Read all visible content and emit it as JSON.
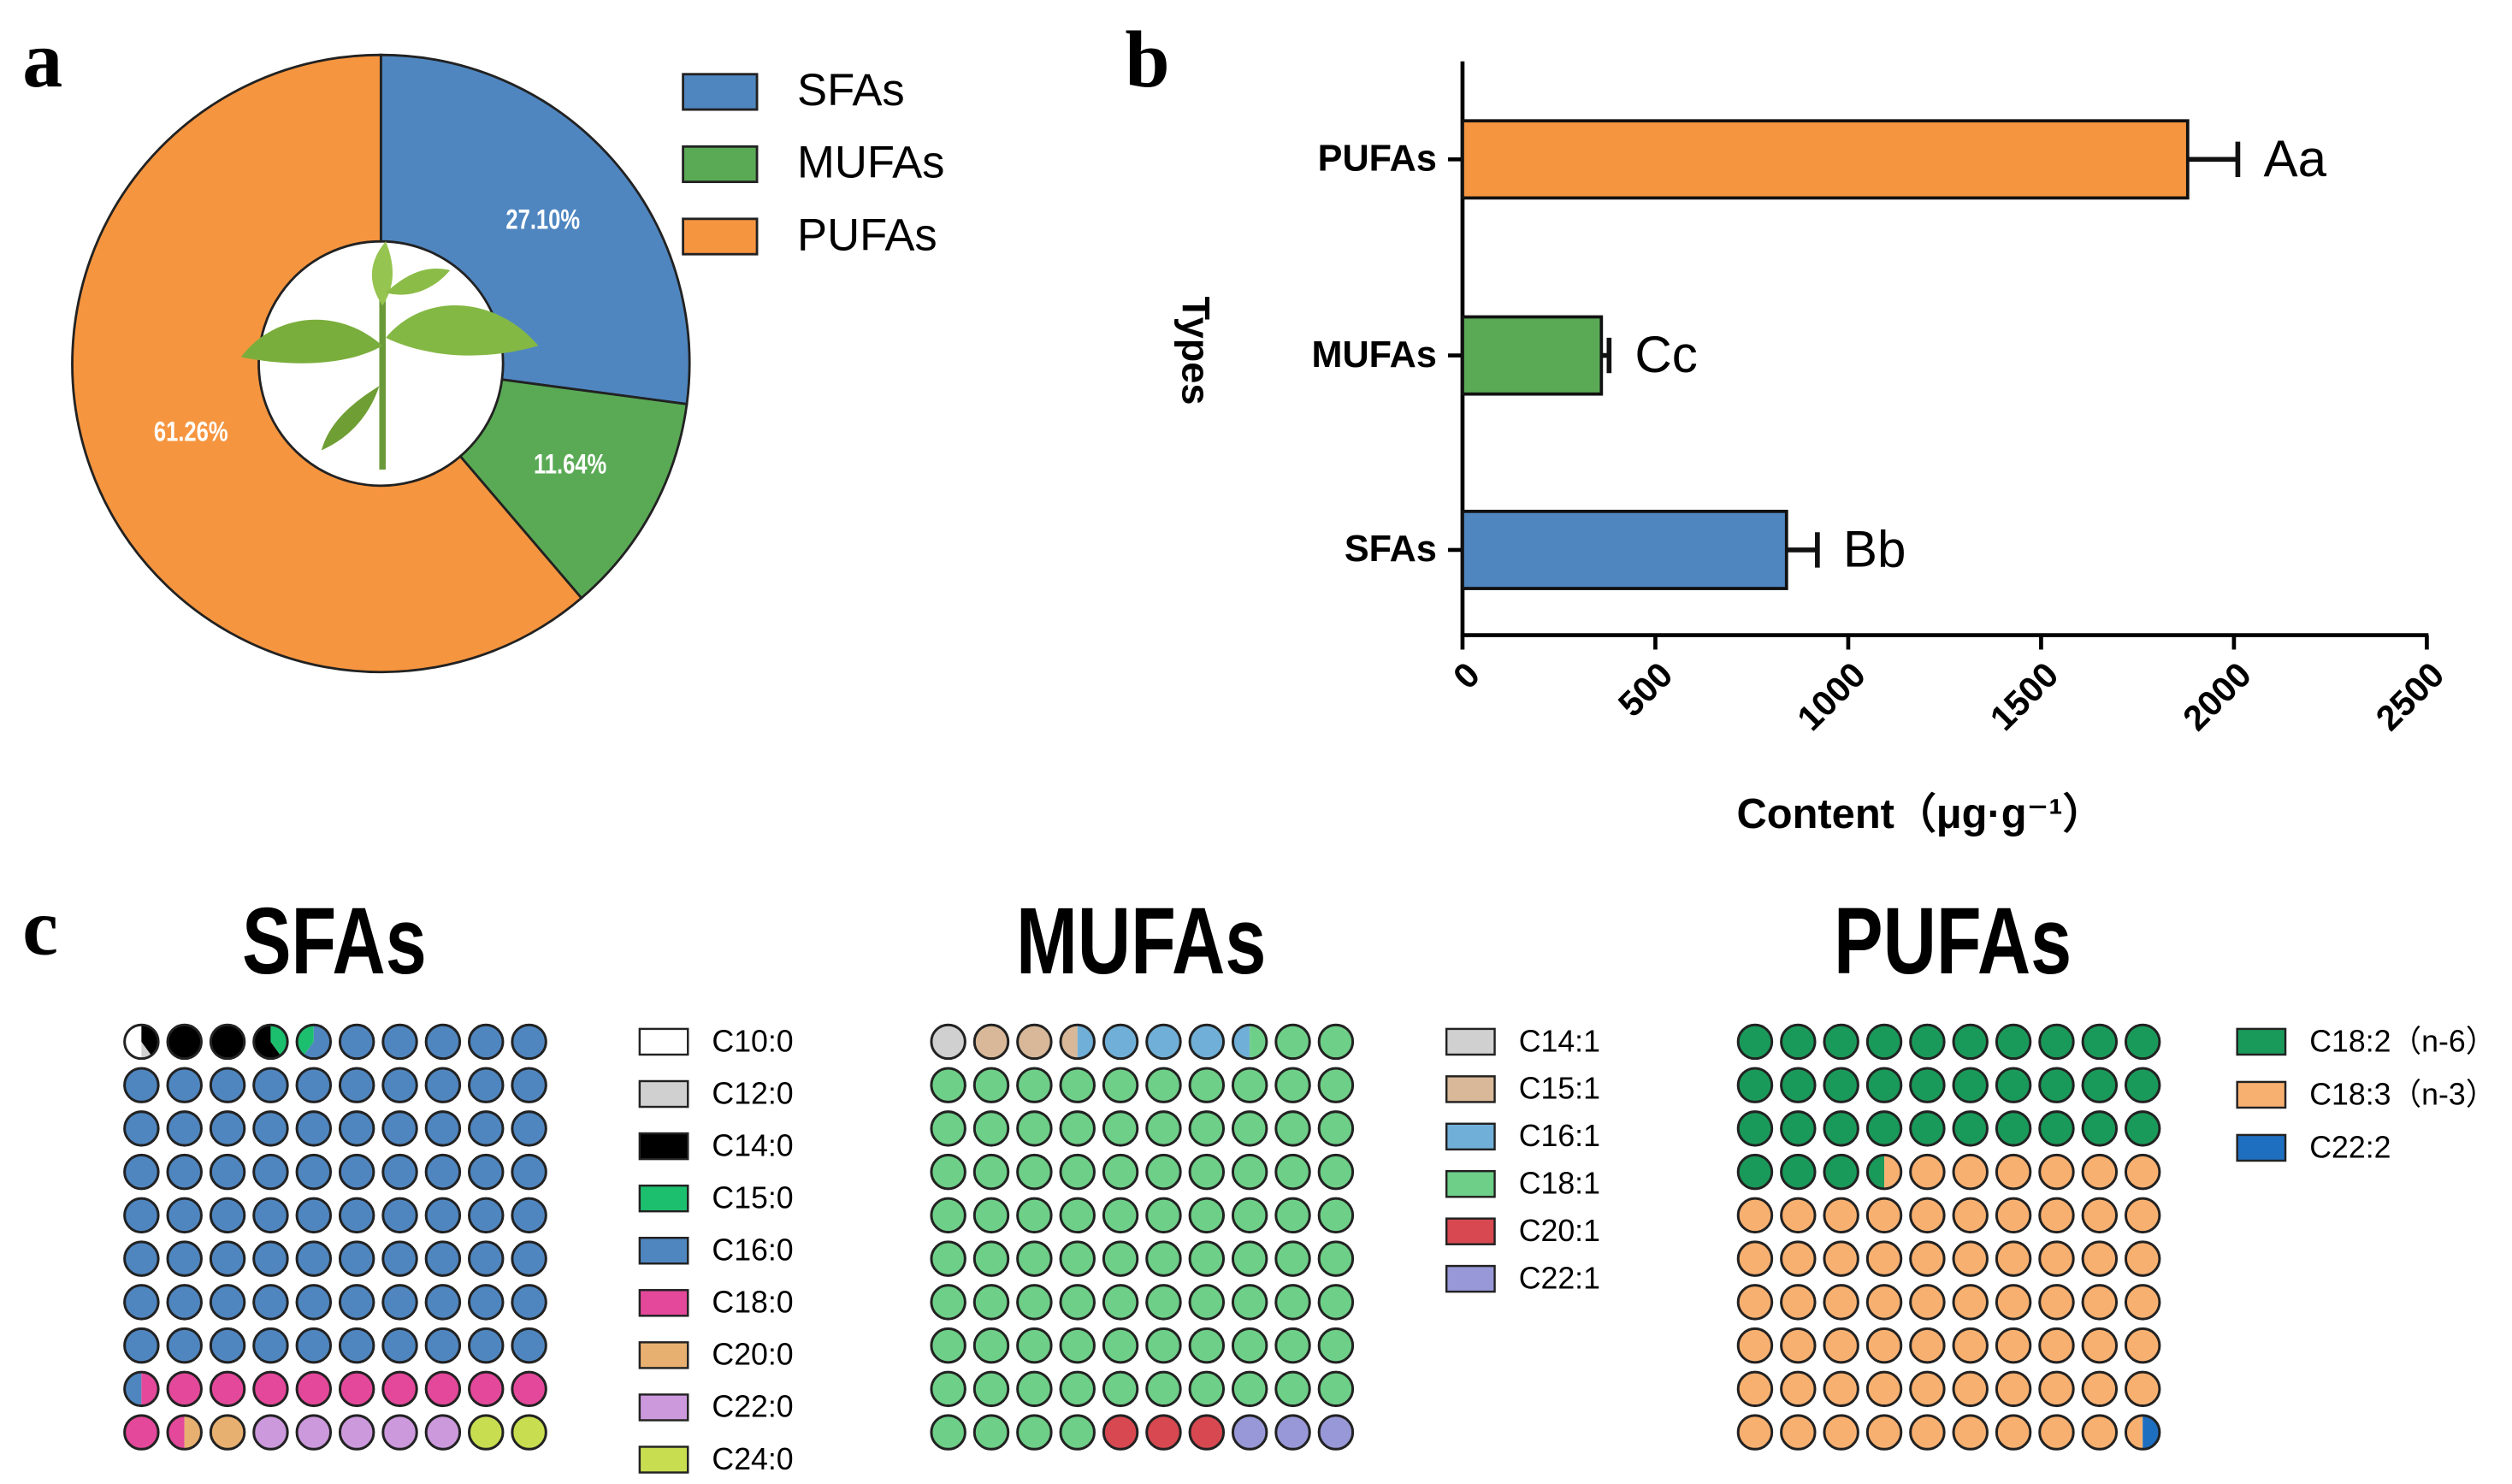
{
  "chart_data": [
    {
      "type": "donut",
      "panel_label": "a",
      "categories": [
        "SFAs",
        "MUFAs",
        "PUFAs"
      ],
      "values": [
        27.1,
        11.64,
        61.26
      ],
      "value_labels": [
        "27.10%",
        "11.64%",
        "61.26%"
      ],
      "colors": [
        "#4f86c0",
        "#5aaa55",
        "#f6953f"
      ],
      "legend": "right"
    },
    {
      "type": "hbar",
      "panel_label": "b",
      "categories": [
        "SFAs",
        "MUFAs",
        "PUFAs"
      ],
      "values": [
        840,
        360,
        1880
      ],
      "errors": [
        80,
        20,
        130
      ],
      "annotations": [
        "Bb",
        "Cc",
        "Aa"
      ],
      "colors": [
        "#4f86c0",
        "#5aaa55",
        "#f6953f"
      ],
      "xlabel": "Content（μg·g⁻¹）",
      "ylabel": "Types",
      "xlim": [
        0,
        2500
      ],
      "xticks": [
        0,
        500,
        1000,
        1500,
        2000,
        2500
      ]
    },
    {
      "type": "waffle",
      "panel_label": "c",
      "title": "SFAs",
      "categories": [
        "C10:0",
        "C12:0",
        "C14:0",
        "C15:0",
        "C16:0",
        "C18:0",
        "C20:0",
        "C22:0",
        "C24:0"
      ],
      "values": [
        0.5,
        0.1,
        3.0,
        0.8,
        76.1,
        11.0,
        1.5,
        5.0,
        2.0
      ],
      "colors": [
        "#ffffff",
        "#d0d0d0",
        "#000000",
        "#1cbf6e",
        "#4f86c0",
        "#e4489a",
        "#e8b070",
        "#cc99dd",
        "#c8de50"
      ]
    },
    {
      "type": "waffle",
      "title": "MUFAs",
      "categories": [
        "C14:1",
        "C15:1",
        "C16:1",
        "C18:1",
        "C20:1",
        "C22:1"
      ],
      "values": [
        1.0,
        2.5,
        4.0,
        86.5,
        3.0,
        3.0
      ],
      "colors": [
        "#d0d0d0",
        "#d8b898",
        "#70b0d8",
        "#6ecf88",
        "#d84850",
        "#9898d8"
      ]
    },
    {
      "type": "waffle",
      "title": "PUFAs",
      "categories": [
        "C18:2（n-6）",
        "C18:3（n-3）",
        "C22:2"
      ],
      "values": [
        33.5,
        66.0,
        0.5
      ],
      "colors": [
        "#1a9a5a",
        "#f8b070",
        "#1f6fc0"
      ]
    }
  ]
}
